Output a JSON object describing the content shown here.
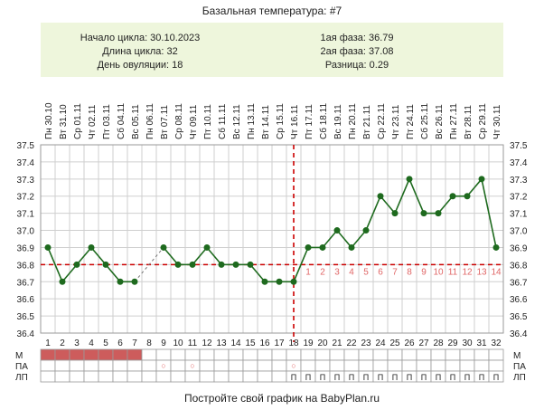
{
  "title": "Базальная температура: #7",
  "info": {
    "cycle_start": "Начало цикла: 30.10.2023",
    "cycle_length": "Длина цикла: 32",
    "ovulation_day": "День овуляции: 18",
    "phase1": "1ая фаза: 36.79",
    "phase2": "2ая фаза: 37.08",
    "difference": "Разница: 0.29"
  },
  "footer": "Постройте свой график на BabyPlan.ru",
  "row_labels": {
    "m": "М",
    "pa": "ПА",
    "lp": "ЛП"
  },
  "colors": {
    "line": "#1f6b1f",
    "point": "#1e6a1e",
    "coverline": "#cc0000",
    "luteal_numbers": "#e06666",
    "menstruation": "#cd5c5c",
    "info_bg": "#eef6dc",
    "grid": "#cfcfcf"
  },
  "chart_data": {
    "type": "line",
    "ylim": [
      36.4,
      37.5
    ],
    "y_ticks": [
      "36.4",
      "36.5",
      "36.6",
      "36.7",
      "36.8",
      "36.9",
      "37.0",
      "37.1",
      "37.2",
      "37.3",
      "37.4",
      "37.5"
    ],
    "day_numbers": [
      "1",
      "2",
      "3",
      "4",
      "5",
      "6",
      "7",
      "8",
      "9",
      "10",
      "11",
      "12",
      "13",
      "14",
      "15",
      "16",
      "17",
      "18",
      "19",
      "20",
      "21",
      "22",
      "23",
      "24",
      "25",
      "26",
      "27",
      "28",
      "29",
      "30",
      "31",
      "32"
    ],
    "dates": [
      "Пн 30.10",
      "Вт 31.10",
      "Ср 01.11",
      "Чт 02.11",
      "Пт 03.11",
      "Сб 04.11",
      "Вс 05.11",
      "Пн 06.11",
      "Вт 07.11",
      "Ср 08.11",
      "Чт 09.11",
      "Пт 10.11",
      "Сб 11.11",
      "Вс 12.11",
      "Пн 13.11",
      "Вт 14.11",
      "Ср 15.11",
      "Чт 16.11",
      "Пт 17.11",
      "Сб 18.11",
      "Вс 19.11",
      "Пн 20.11",
      "Вт 21.11",
      "Ср 22.11",
      "Чт 23.11",
      "Пт 24.11",
      "Сб 25.11",
      "Вс 26.11",
      "Пн 27.11",
      "Вт 28.11",
      "Ср 29.11",
      "Чт 30.11"
    ],
    "temperatures": [
      36.9,
      36.7,
      36.8,
      36.9,
      36.8,
      36.7,
      36.7,
      null,
      36.9,
      36.8,
      36.8,
      36.9,
      36.8,
      36.8,
      36.8,
      36.7,
      36.7,
      36.7,
      36.9,
      36.9,
      37.0,
      36.9,
      37.0,
      37.2,
      37.1,
      37.3,
      37.1,
      37.1,
      37.2,
      37.2,
      37.3,
      36.9
    ],
    "coverline": 36.8,
    "ovulation_day": 18,
    "luteal_day_labels": [
      "1",
      "2",
      "3",
      "4",
      "5",
      "6",
      "7",
      "8",
      "9",
      "10",
      "11",
      "12",
      "13",
      "14"
    ],
    "menstruation_days": [
      1,
      2,
      3,
      4,
      5,
      6,
      7
    ],
    "pa_days": [
      9,
      11,
      18
    ],
    "pa_mark": "○",
    "lp_days": [
      18,
      19,
      20,
      21,
      22,
      23,
      24,
      25,
      26,
      27,
      28,
      29,
      30,
      31,
      32
    ],
    "lp_mark": "П"
  }
}
